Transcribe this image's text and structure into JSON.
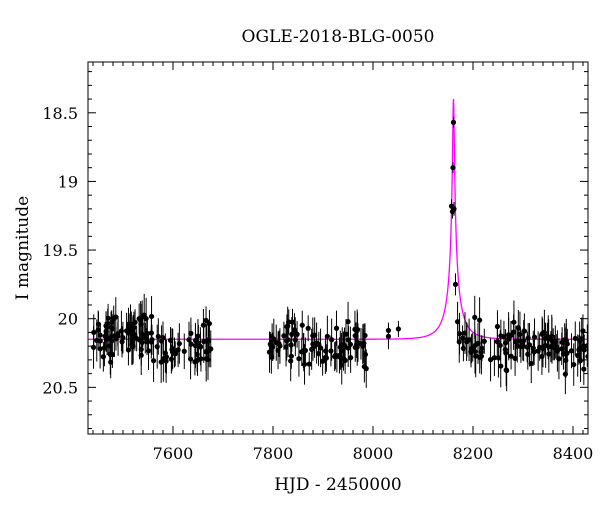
{
  "chart_data": {
    "type": "scatter",
    "title": "OGLE-2018-BLG-0050",
    "xlabel": "HJD - 2450000",
    "ylabel": "I magnitude",
    "xlim": [
      7430,
      8430
    ],
    "ylim": [
      20.84,
      18.13
    ],
    "y_inverted": true,
    "x_ticks": [
      7600,
      7800,
      8000,
      8200,
      8400
    ],
    "y_ticks": [
      18.5,
      19,
      19.5,
      20,
      20.5
    ],
    "x_tick_labels": [
      "7600",
      "7800",
      "8000",
      "8200",
      "8400"
    ],
    "y_tick_labels": [
      "18.5",
      "19",
      "19.5",
      "20",
      "20.5"
    ],
    "colors": {
      "data": "#000000",
      "model": "#ff00ff"
    },
    "model": {
      "name": "",
      "baseline_mag": 20.15,
      "t0": 8161,
      "peak_mag": 18.4,
      "u0": 0.046,
      "tE": 34
    },
    "data_sets": [
      {
        "x_range": [
          7440,
          7560
        ],
        "count": 70,
        "mean_mag": 20.12,
        "scatter": 0.16,
        "err": 0.12
      },
      {
        "x_range": [
          7560,
          7680
        ],
        "count": 45,
        "mean_mag": 20.2,
        "scatter": 0.18,
        "err": 0.13
      },
      {
        "x_range": [
          7790,
          7870
        ],
        "count": 35,
        "mean_mag": 20.2,
        "scatter": 0.16,
        "err": 0.12
      },
      {
        "x_range": [
          7870,
          7990
        ],
        "count": 55,
        "mean_mag": 20.2,
        "scatter": 0.16,
        "err": 0.12
      },
      {
        "x_range": [
          8030,
          8055
        ],
        "count": 3,
        "mean_mag": 20.1,
        "scatter": 0.05,
        "err": 0.08
      },
      {
        "x_range": [
          8168,
          8430
        ],
        "count": 110,
        "mean_mag": 20.2,
        "scatter": 0.17,
        "err": 0.13
      }
    ],
    "peak_points": [
      {
        "x": 8157,
        "y": 19.18,
        "err": 0.05
      },
      {
        "x": 8159,
        "y": 19.22,
        "err": 0.05
      },
      {
        "x": 8160,
        "y": 18.9,
        "err": 0.04
      },
      {
        "x": 8161,
        "y": 18.57,
        "err": 0.04
      },
      {
        "x": 8162,
        "y": 19.2,
        "err": 0.05
      },
      {
        "x": 8165,
        "y": 19.75,
        "err": 0.08
      }
    ]
  }
}
